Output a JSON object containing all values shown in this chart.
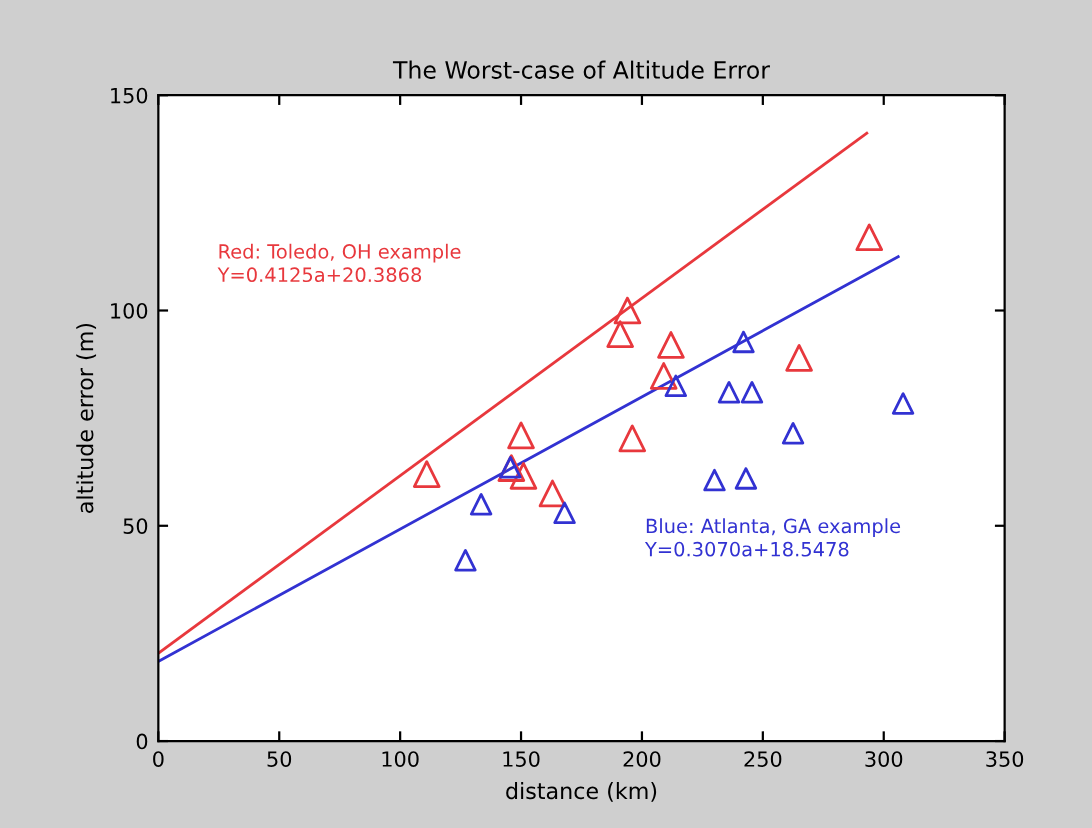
{
  "chart_data": {
    "type": "scatter",
    "title": "The Worst-case of Altitude Error",
    "xlabel": "distance (km)",
    "ylabel": "altitude error (m)",
    "xlim": [
      0,
      350
    ],
    "xticks": [
      0,
      50,
      100,
      150,
      200,
      250,
      300,
      350
    ],
    "ylim": [
      0,
      150
    ],
    "yticks": [
      0,
      50,
      100,
      150
    ],
    "grid": false,
    "legend": false,
    "series": [
      {
        "marker": "triangle",
        "color": "#e8383d",
        "x": [
          111,
          146,
          150,
          151,
          163,
          191,
          194,
          196,
          209,
          212,
          265,
          294
        ],
        "values": [
          62,
          63.4,
          71,
          61.6,
          57.5,
          94.5,
          100,
          70.3,
          84.8,
          92,
          89,
          117
        ]
      },
      {
        "marker": "triangle",
        "color": "#3232d2",
        "x": [
          127,
          133.5,
          145.6,
          168,
          214,
          230,
          236,
          242,
          243,
          245.5,
          262.5,
          308
        ],
        "values": [
          42,
          55,
          63.6,
          53,
          82.5,
          60.6,
          81,
          92.7,
          61,
          81,
          71.5,
          78.4
        ]
      },
      {
        "type": "line",
        "color": "#e8383d",
        "x": [
          0,
          293
        ],
        "values": [
          20.4,
          141.2
        ],
        "line_style": "solid"
      },
      {
        "type": "line",
        "color": "#3232d2",
        "x": [
          0,
          306
        ],
        "values": [
          18.5,
          112.5
        ],
        "line_style": "solid"
      }
    ],
    "annotations": [
      "Red: Toledo, OH example\nY=0.4125a+20.3868",
      "Blue: Atlanta, GA example\nY=0.3070a+18.5478"
    ]
  }
}
